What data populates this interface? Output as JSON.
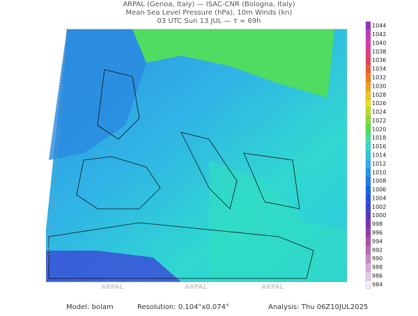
{
  "header": {
    "line1": "ARPAL (Genoa, Italy)  —  ISAC-CNR (Bologna, Italy)",
    "line2": "Mean Sea Level Pressure (hPa), 10m Winds (kn)",
    "line3": "03 UTC Sun 13 JUL  —  τ = 69h"
  },
  "colorbar": {
    "levels": [
      984,
      986,
      988,
      990,
      992,
      994,
      996,
      998,
      1000,
      1002,
      1004,
      1006,
      1008,
      1010,
      1012,
      1014,
      1016,
      1018,
      1020,
      1022,
      1024,
      1026,
      1028,
      1030,
      1032,
      1034,
      1036,
      1038,
      1040,
      1042,
      1044
    ],
    "colors": [
      "#f4eef4",
      "#e6c8e6",
      "#d8a8d8",
      "#c888c8",
      "#b868b8",
      "#a850a8",
      "#9838a8",
      "#7830b0",
      "#5830c0",
      "#3840d0",
      "#2050e0",
      "#1464e8",
      "#187ce8",
      "#2494e8",
      "#30ace8",
      "#30c4e0",
      "#30dcc4",
      "#40e494",
      "#50e050",
      "#84e030",
      "#b4e020",
      "#e4e020",
      "#f0c420",
      "#f0a020",
      "#f07c20",
      "#f05c30",
      "#e84060",
      "#e03c8c",
      "#d838a8",
      "#c038c0",
      "#9830c0"
    ]
  },
  "watermark": "ARPAL",
  "footer": {
    "model": "Model: bolam",
    "resolution": "Resolution: 0.104°x0.074°",
    "analysis": "Analysis: Thu 06Z10JUL2025"
  }
}
